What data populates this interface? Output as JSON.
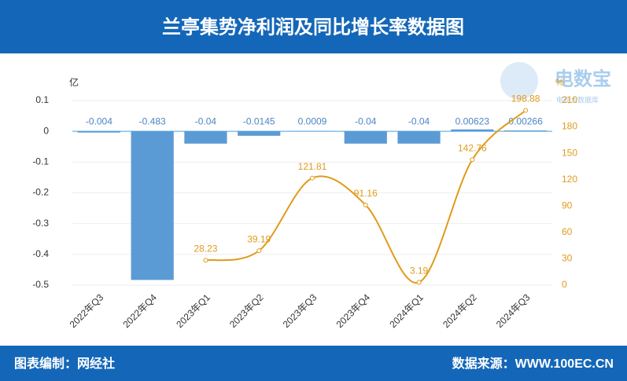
{
  "header": {
    "title": "兰亭集势净利润及同比增长率数据图"
  },
  "footer": {
    "left": "图表编制：网经社",
    "right": "数据来源：WWW.100EC.CN"
  },
  "watermark": {
    "name": "电数宝",
    "sub": "电商大数据库"
  },
  "chart_data": {
    "type": "bar-line",
    "y_label": "亿",
    "y2_label": "%",
    "categories": [
      "2022年Q3",
      "2022年Q4",
      "2023年Q1",
      "2023年Q2",
      "2023年Q3",
      "2023年Q4",
      "2024年Q1",
      "2024年Q2",
      "2024年Q3"
    ],
    "series": [
      {
        "name": "净利润",
        "type": "bar",
        "color": "#5b9bd5",
        "label_color": "#4a86c5",
        "values": [
          -0.004,
          -0.483,
          -0.04,
          -0.0145,
          0.0009,
          -0.04,
          -0.04,
          0.00623,
          0.00266
        ]
      },
      {
        "name": "同比增长率",
        "type": "line",
        "axis": "y2",
        "color": "#e09b1a",
        "values": [
          null,
          null,
          28.23,
          39.19,
          121.81,
          91.16,
          3.19,
          142.76,
          198.88
        ]
      }
    ],
    "ylim": [
      -0.5,
      0.1
    ],
    "yticks": [
      0.1,
      0,
      -0.1,
      -0.2,
      -0.3,
      -0.4,
      -0.5
    ],
    "y2lim": [
      0,
      210
    ],
    "y2ticks": [
      0,
      30,
      60,
      90,
      120,
      150,
      180,
      210
    ],
    "grid": true
  }
}
